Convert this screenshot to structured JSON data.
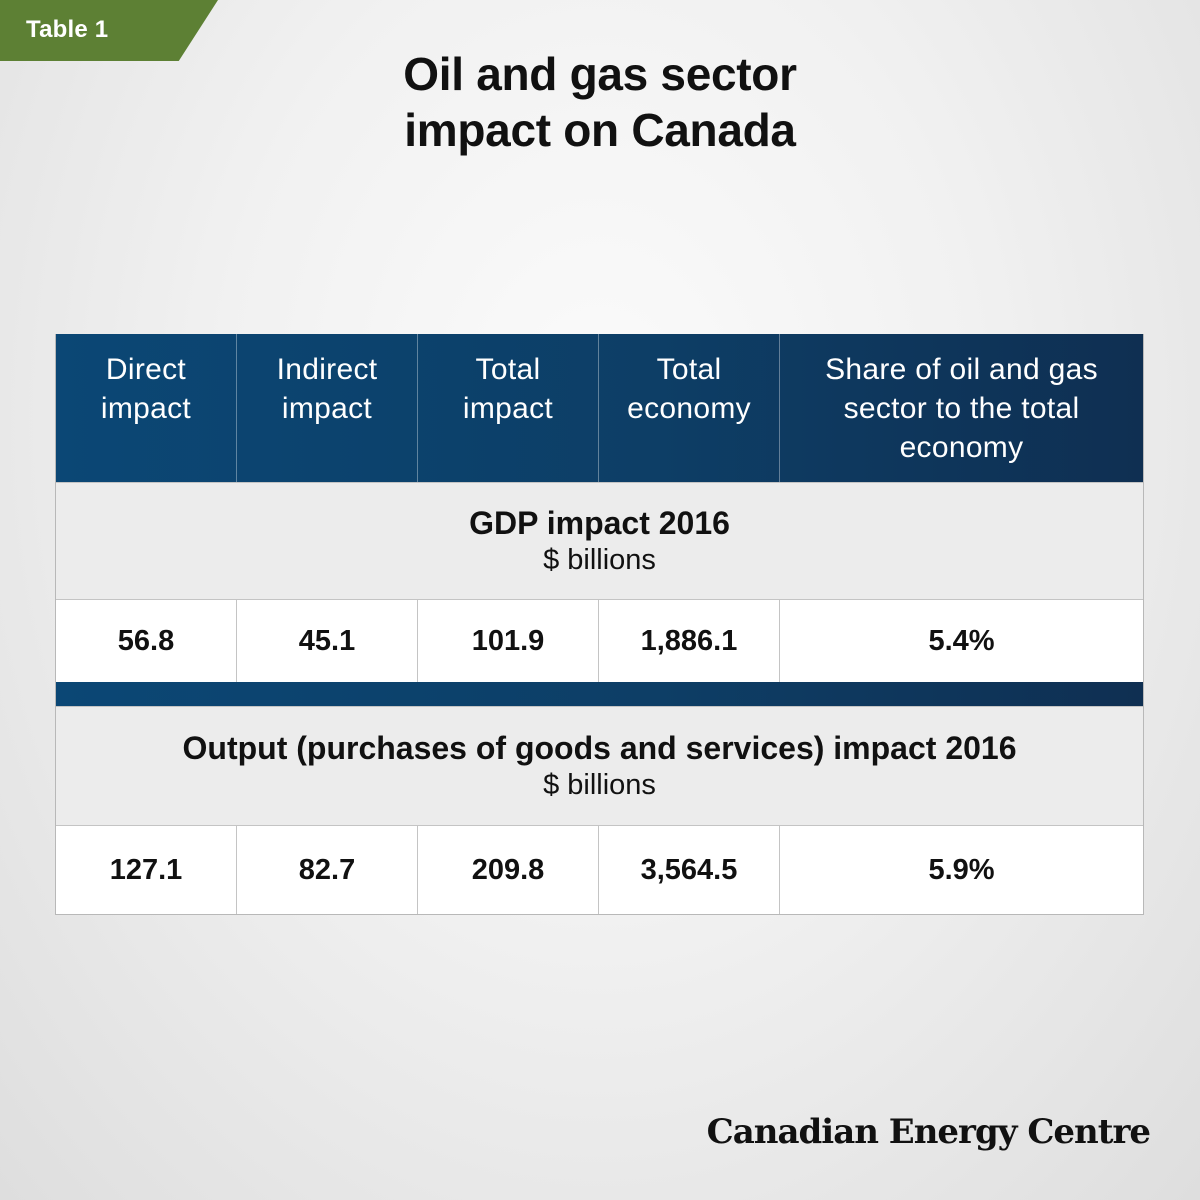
{
  "tag": {
    "label": "Table 1"
  },
  "title": {
    "line1": "Oil and gas sector",
    "line2": "impact on Canada"
  },
  "chart_data": {
    "type": "table",
    "title": "Oil and gas sector impact on Canada",
    "columns": [
      {
        "line1": "Direct",
        "line2": "impact"
      },
      {
        "line1": "Indirect",
        "line2": "impact"
      },
      {
        "line1": "Total",
        "line2": "impact"
      },
      {
        "line1": "Total",
        "line2": "economy"
      },
      {
        "line1": "Share of oil and gas",
        "line2": "sector to the total",
        "line3": "economy"
      }
    ],
    "sections": [
      {
        "title": "GDP impact 2016",
        "unit": "$ billions",
        "values": [
          "56.8",
          "45.1",
          "101.9",
          "1,886.1",
          "5.4%"
        ]
      },
      {
        "title": "Output (purchases of goods and services) impact 2016",
        "unit": "$ billions",
        "values": [
          "127.1",
          "82.7",
          "209.8",
          "3,564.5",
          "5.9%"
        ]
      }
    ]
  },
  "brand": {
    "name": "Canadian Energy Centre"
  }
}
